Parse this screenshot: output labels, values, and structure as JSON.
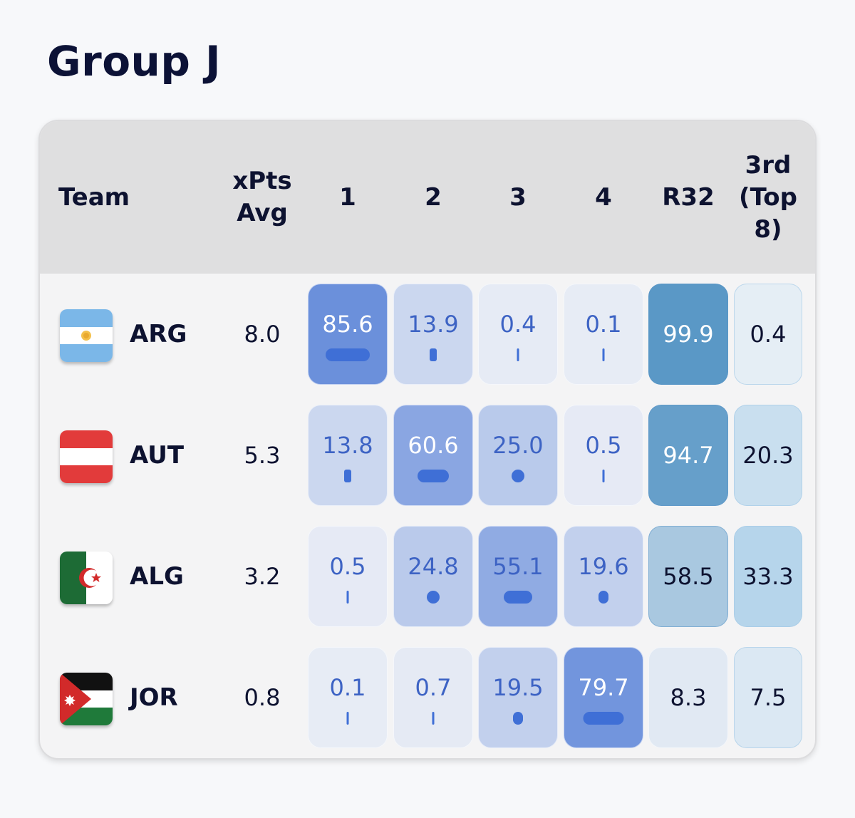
{
  "title": "Group J",
  "headers": {
    "team": "Team",
    "xpts": "xPts\nAvg",
    "p1": "1",
    "p2": "2",
    "p3": "3",
    "p4": "4",
    "r32": "R32",
    "third": "3rd\n(Top\n8)"
  },
  "rows": [
    {
      "code": "ARG",
      "flag": "argentina-flag-icon",
      "xpts": "8.0",
      "p1": "85.6",
      "p2": "13.9",
      "p3": "0.4",
      "p4": "0.1",
      "r32": "99.9",
      "third": "0.4"
    },
    {
      "code": "AUT",
      "flag": "austria-flag-icon",
      "xpts": "5.3",
      "p1": "13.8",
      "p2": "60.6",
      "p3": "25.0",
      "p4": "0.5",
      "r32": "94.7",
      "third": "20.3"
    },
    {
      "code": "ALG",
      "flag": "algeria-flag-icon",
      "xpts": "3.2",
      "p1": "0.5",
      "p2": "24.8",
      "p3": "55.1",
      "p4": "19.6",
      "r32": "58.5",
      "third": "33.3"
    },
    {
      "code": "JOR",
      "flag": "jordan-flag-icon",
      "xpts": "0.8",
      "p1": "0.1",
      "p2": "0.7",
      "p3": "19.5",
      "p4": "79.7",
      "r32": "8.3",
      "third": "7.5"
    }
  ],
  "colors": {
    "position_scale": [
      "#e8ecf5",
      "#5b84d8"
    ],
    "r32_scale": [
      "#e4ebf4",
      "#5a98c6"
    ],
    "third_scale": [
      "#e6eef5",
      "#b4d4ea"
    ],
    "bar": "#3f6fd6",
    "text_dark": "#0d1230",
    "text_blue": "#3d63c4"
  }
}
